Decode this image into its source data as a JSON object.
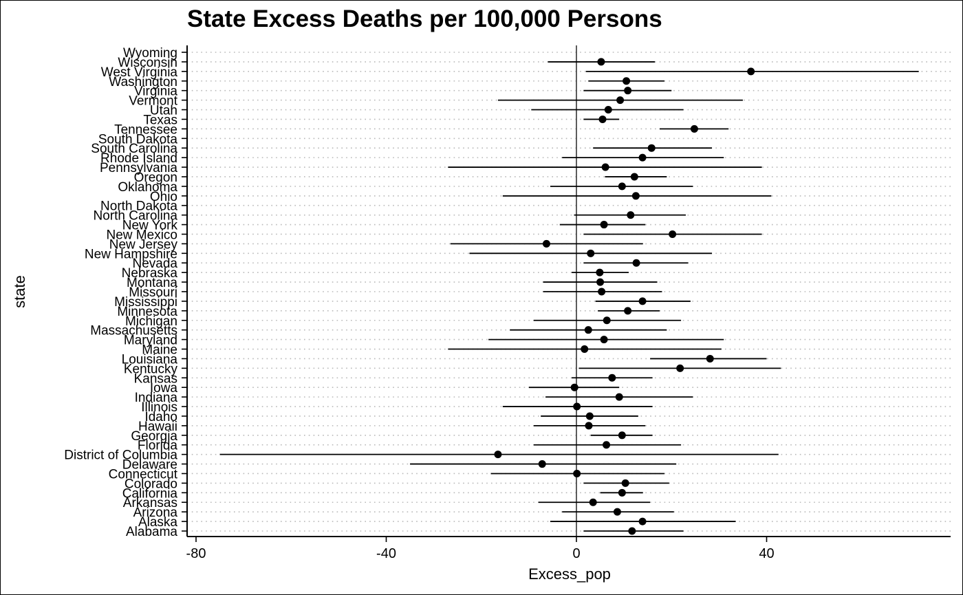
{
  "chart_data": {
    "type": "scatter",
    "title": "State Excess Deaths per 100,000 Persons",
    "xlabel": "Excess_pop",
    "ylabel": "state",
    "xlim": [
      -81,
      79
    ],
    "x_ticks": [
      -80,
      -40,
      0,
      40
    ],
    "x_tick_labels": [
      "-80",
      "-40",
      "0",
      "40"
    ],
    "reference_line_x": 0,
    "grid": "dotted horizontal",
    "points": [
      {
        "state": "Wyoming",
        "x": null,
        "lo": null,
        "hi": null
      },
      {
        "state": "Wisconsin",
        "x": 5.2,
        "lo": -6.0,
        "hi": 16.5
      },
      {
        "state": "West Virginia",
        "x": 36.7,
        "lo": 2.0,
        "hi": 72.0
      },
      {
        "state": "Washington",
        "x": 10.5,
        "lo": 2.5,
        "hi": 18.5
      },
      {
        "state": "Virginia",
        "x": 10.8,
        "lo": 1.5,
        "hi": 20.0
      },
      {
        "state": "Vermont",
        "x": 9.2,
        "lo": -16.5,
        "hi": 35.0
      },
      {
        "state": "Utah",
        "x": 6.7,
        "lo": -9.5,
        "hi": 22.5
      },
      {
        "state": "Texas",
        "x": 5.5,
        "lo": 1.5,
        "hi": 9.0
      },
      {
        "state": "Tennessee",
        "x": 24.8,
        "lo": 17.5,
        "hi": 32.0
      },
      {
        "state": "South Dakota",
        "x": null,
        "lo": null,
        "hi": null
      },
      {
        "state": "South Carolina",
        "x": 15.8,
        "lo": 3.5,
        "hi": 28.5
      },
      {
        "state": "Rhode Island",
        "x": 13.9,
        "lo": -3.0,
        "hi": 31.0
      },
      {
        "state": "Pennsylvania",
        "x": 6.1,
        "lo": -27.0,
        "hi": 39.0
      },
      {
        "state": "Oregon",
        "x": 12.2,
        "lo": 6.0,
        "hi": 19.0
      },
      {
        "state": "Oklahoma",
        "x": 9.6,
        "lo": -5.5,
        "hi": 24.5
      },
      {
        "state": "Ohio",
        "x": 12.5,
        "lo": -15.5,
        "hi": 41.0
      },
      {
        "state": "North Dakota",
        "x": null,
        "lo": null,
        "hi": null
      },
      {
        "state": "North Carolina",
        "x": 11.4,
        "lo": -0.5,
        "hi": 23.0
      },
      {
        "state": "New York",
        "x": 5.8,
        "lo": -3.5,
        "hi": 14.5
      },
      {
        "state": "New Mexico",
        "x": 20.2,
        "lo": 1.5,
        "hi": 39.0
      },
      {
        "state": "New Jersey",
        "x": -6.3,
        "lo": -26.5,
        "hi": 14.0
      },
      {
        "state": "New Hampshire",
        "x": 3.0,
        "lo": -22.5,
        "hi": 28.5
      },
      {
        "state": "Nevada",
        "x": 12.6,
        "lo": 1.5,
        "hi": 23.5
      },
      {
        "state": "Nebraska",
        "x": 4.9,
        "lo": -1.0,
        "hi": 11.0
      },
      {
        "state": "Montana",
        "x": 5.0,
        "lo": -7.0,
        "hi": 17.0
      },
      {
        "state": "Missouri",
        "x": 5.3,
        "lo": -7.0,
        "hi": 18.0
      },
      {
        "state": "Mississippi",
        "x": 13.9,
        "lo": 4.0,
        "hi": 24.0
      },
      {
        "state": "Minnesota",
        "x": 10.8,
        "lo": 4.5,
        "hi": 17.5
      },
      {
        "state": "Michigan",
        "x": 6.4,
        "lo": -9.0,
        "hi": 22.0
      },
      {
        "state": "Massachusetts",
        "x": 2.5,
        "lo": -14.0,
        "hi": 19.0
      },
      {
        "state": "Maryland",
        "x": 5.8,
        "lo": -18.5,
        "hi": 31.0
      },
      {
        "state": "Maine",
        "x": 1.7,
        "lo": -27.0,
        "hi": 30.5
      },
      {
        "state": "Louisiana",
        "x": 28.1,
        "lo": 15.5,
        "hi": 40.0
      },
      {
        "state": "Kentucky",
        "x": 21.8,
        "lo": 0.5,
        "hi": 43.0
      },
      {
        "state": "Kansas",
        "x": 7.5,
        "lo": -1.0,
        "hi": 16.0
      },
      {
        "state": "Iowa",
        "x": -0.4,
        "lo": -10.0,
        "hi": 9.0
      },
      {
        "state": "Indiana",
        "x": 9.0,
        "lo": -6.5,
        "hi": 24.5
      },
      {
        "state": "Illinois",
        "x": 0.1,
        "lo": -15.5,
        "hi": 16.0
      },
      {
        "state": "Idaho",
        "x": 2.8,
        "lo": -7.5,
        "hi": 13.0
      },
      {
        "state": "Hawaii",
        "x": 2.6,
        "lo": -9.0,
        "hi": 14.5
      },
      {
        "state": "Georgia",
        "x": 9.6,
        "lo": 3.0,
        "hi": 16.0
      },
      {
        "state": "Florida",
        "x": 6.3,
        "lo": -9.0,
        "hi": 22.0
      },
      {
        "state": "District of Columbia",
        "x": -16.5,
        "lo": -75.0,
        "hi": 42.5
      },
      {
        "state": "Delaware",
        "x": -7.2,
        "lo": -35.0,
        "hi": 21.0
      },
      {
        "state": "Connecticut",
        "x": 0.1,
        "lo": -18.0,
        "hi": 18.5
      },
      {
        "state": "Colorado",
        "x": 10.3,
        "lo": 1.5,
        "hi": 19.5
      },
      {
        "state": "California",
        "x": 9.6,
        "lo": 5.0,
        "hi": 14.0
      },
      {
        "state": "Arkansas",
        "x": 3.5,
        "lo": -8.0,
        "hi": 15.5
      },
      {
        "state": "Arizona",
        "x": 8.6,
        "lo": -3.0,
        "hi": 20.5
      },
      {
        "state": "Alaska",
        "x": 13.9,
        "lo": -5.5,
        "hi": 33.5
      },
      {
        "state": "Alabama",
        "x": 11.7,
        "lo": 1.5,
        "hi": 22.5
      }
    ]
  }
}
